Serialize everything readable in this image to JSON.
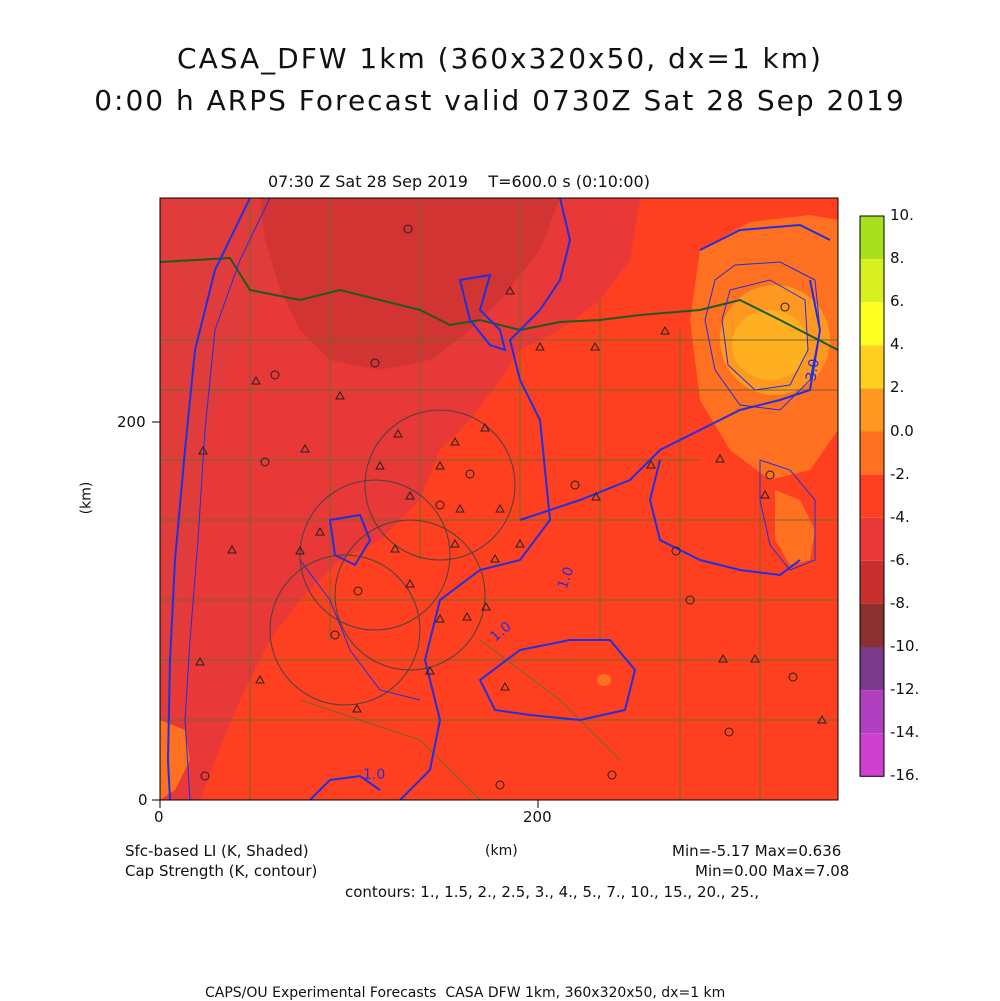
{
  "title_line1": "CASA_DFW 1km (360x320x50, dx=1 km)",
  "title_line2": "0:00 h ARPS Forecast valid 0730Z Sat 28 Sep 2019",
  "subtitle": "07:30 Z Sat 28 Sep 2019    T=600.0 s (0:10:00)",
  "axes": {
    "x_label": "(km)",
    "y_label": "(km)",
    "x_ticks": [
      "0",
      "200"
    ],
    "y_ticks": [
      "0",
      "200"
    ]
  },
  "legend_left": {
    "line1": "Sfc-based LI (K, Shaded)",
    "line2": "Cap Strength (K, contour)"
  },
  "stats": {
    "li": "Min=-5.17 Max=0.636",
    "cap": "Min=0.00 Max=7.08",
    "contours": "contours: 1., 1.5, 2., 2.5, 3., 4., 5., 7., 10., 15., 20., 25.,"
  },
  "contour_labels": [
    "1.0",
    "1.0",
    "1.0",
    "3.0"
  ],
  "colorbar": {
    "labels": [
      "10.",
      "8.",
      "6.",
      "4.",
      "2.",
      "0.0",
      "-2.",
      "-4.",
      "-6.",
      "-8.",
      "-10.",
      "-12.",
      "-14.",
      "-16."
    ],
    "colors": [
      "#a8e020",
      "#d8f020",
      "#ffff20",
      "#ffd020",
      "#ff9820",
      "#ff7020",
      "#ff4020",
      "#e83838",
      "#c83030",
      "#8a3030",
      "#7a3a8a",
      "#b040c0",
      "#d040d0",
      "#e050e8"
    ]
  },
  "footer": "CAPS/OU Experimental Forecasts  CASA DFW 1km, 360x320x50, dx=1 km"
}
